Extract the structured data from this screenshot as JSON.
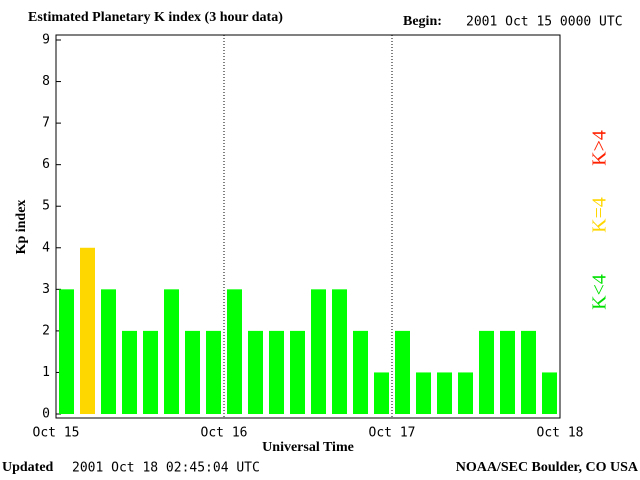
{
  "chart_data": {
    "type": "bar",
    "title": "Estimated Planetary K index (3 hour data)",
    "begin_label": "Begin:",
    "begin_value": "2001 Oct 15 0000 UTC",
    "y_label": "Kp index",
    "x_label": "Universal Time",
    "updated_label": "Updated",
    "updated_value": "2001 Oct 18 02:45:04 UTC",
    "source": "NOAA/SEC Boulder, CO USA",
    "day_labels": [
      "Oct 15",
      "Oct 16",
      "Oct 17",
      "Oct 18"
    ],
    "values": [
      3,
      4,
      3,
      2,
      2,
      3,
      2,
      2,
      3,
      2,
      2,
      2,
      3,
      3,
      2,
      1,
      2,
      1,
      1,
      1,
      2,
      2,
      2,
      1
    ],
    "colors": [
      "#00ff00",
      "#ffd700",
      "#00ff00",
      "#00ff00",
      "#00ff00",
      "#00ff00",
      "#00ff00",
      "#00ff00",
      "#00ff00",
      "#00ff00",
      "#00ff00",
      "#00ff00",
      "#00ff00",
      "#00ff00",
      "#00ff00",
      "#00ff00",
      "#00ff00",
      "#00ff00",
      "#00ff00",
      "#00ff00",
      "#00ff00",
      "#00ff00",
      "#00ff00",
      "#00ff00"
    ],
    "legend": [
      {
        "name": "K<4",
        "color": "#00e000"
      },
      {
        "name": "K=4",
        "color": "#ffd700"
      },
      {
        "name": "K>4",
        "color": "#ff2000"
      }
    ],
    "ylim": [
      0,
      9
    ],
    "yticks": [
      0,
      1,
      2,
      3,
      4,
      5,
      6,
      7,
      8,
      9
    ]
  }
}
